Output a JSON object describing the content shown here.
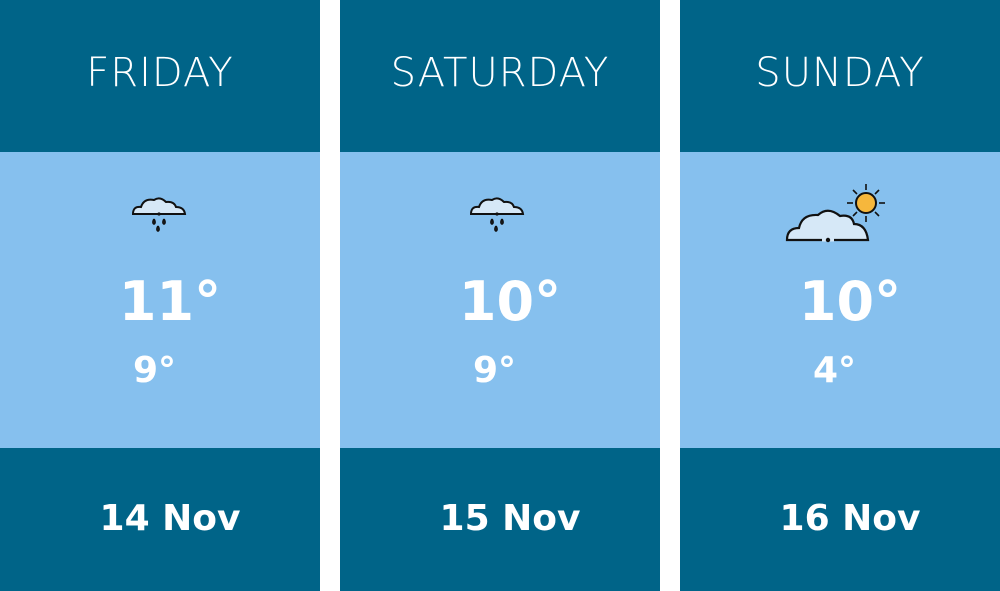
{
  "colors": {
    "header": "#006488",
    "body": "#86c0ee",
    "text": "#ffffff",
    "sun": "#f6b73c",
    "cloud": "#d6e8f7"
  },
  "days": [
    {
      "name": "FRIDAY",
      "icon": "rain-cloud-icon",
      "high": "11°",
      "low": "9°",
      "date": "14 Nov"
    },
    {
      "name": "SATURDAY",
      "icon": "rain-cloud-icon",
      "high": "10°",
      "low": "9°",
      "date": "15 Nov"
    },
    {
      "name": "SUNDAY",
      "icon": "partly-sunny-icon",
      "high": "10°",
      "low": "4°",
      "date": "16 Nov"
    }
  ]
}
